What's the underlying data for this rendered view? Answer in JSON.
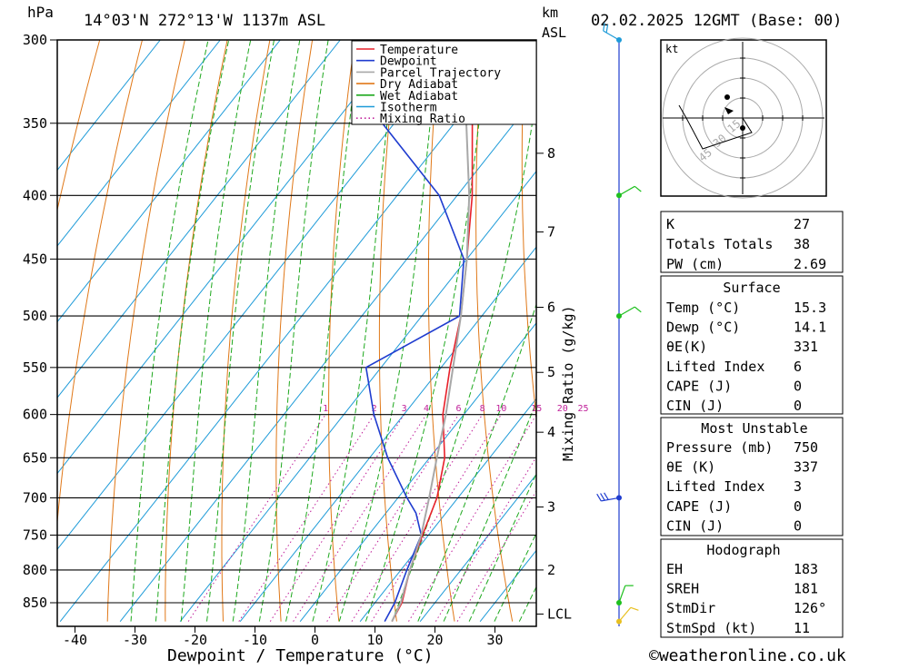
{
  "header": {
    "pressure_unit": "hPa",
    "location": "14°03'N  272°13'W  1137m  ASL",
    "height_unit_km": "km",
    "height_unit_asl": "ASL",
    "datetime": "02.02.2025  12GMT  (Base: 00)"
  },
  "colors": {
    "temperature": "#e8202a",
    "dewpoint": "#1f3ccf",
    "parcel": "#a8a8a8",
    "dry_adiabat": "#e07818",
    "wet_adiabat": "#1ea81e",
    "isotherm": "#1e9bd8",
    "mixing_ratio": "#c0209a",
    "wind_lower": "#1ec01e",
    "wind_top": "#1e9bd8",
    "wind_mid": "#1f3ccf",
    "surface_dot": "#e8c020"
  },
  "legend": [
    "Temperature",
    "Dewpoint",
    "Parcel Trajectory",
    "Dry Adiabat",
    "Wet Adiabat",
    "Isotherm",
    "Mixing Ratio"
  ],
  "footer": {
    "xlabel": "Dewpoint / Temperature (°C)",
    "copyright": "©weatheronline.co.uk"
  },
  "chart_data": {
    "type": "line",
    "title": "14°03'N  272°13'W  1137m  ASL",
    "xlabel": "Dewpoint / Temperature (°C)",
    "ylabel": "hPa",
    "y_scale": "log-pressure",
    "ylim": [
      880,
      300
    ],
    "skew": "skew-T",
    "x_ticks": [
      -40,
      -30,
      -20,
      -10,
      0,
      10,
      20,
      30
    ],
    "pressure_levels": [
      300,
      350,
      400,
      450,
      500,
      550,
      600,
      650,
      700,
      750,
      800,
      850
    ],
    "height_axis": {
      "label": "Mixing Ratio (g/kg)",
      "ticks": [
        {
          "km": "8",
          "p": 370
        },
        {
          "km": "7",
          "p": 428
        },
        {
          "km": "6",
          "p": 492
        },
        {
          "km": "5",
          "p": 555
        },
        {
          "km": "4",
          "p": 620
        },
        {
          "km": "3",
          "p": 712
        },
        {
          "km": "2",
          "p": 800
        },
        {
          "km": "LCL",
          "p": 868
        }
      ]
    },
    "mixing_ratio_labels": [
      "1",
      "2",
      "3",
      "4",
      "6",
      "8",
      "10",
      "15",
      "20",
      "25"
    ],
    "mixing_ratio_values": [
      1,
      2,
      3,
      4,
      6,
      8,
      10,
      15,
      20,
      25
    ],
    "series": [
      {
        "name": "Temperature",
        "points": [
          [
            880,
            15.3
          ],
          [
            850,
            14.5
          ],
          [
            800,
            11.5
          ],
          [
            750,
            9.0
          ],
          [
            700,
            6.5
          ],
          [
            650,
            2.5
          ],
          [
            600,
            -3.5
          ],
          [
            550,
            -8.5
          ],
          [
            500,
            -13.5
          ],
          [
            450,
            -20.0
          ],
          [
            400,
            -27.5
          ],
          [
            350,
            -37.0
          ],
          [
            300,
            -46.0
          ]
        ]
      },
      {
        "name": "Dewpoint",
        "points": [
          [
            880,
            14.1
          ],
          [
            850,
            13.3
          ],
          [
            800,
            11.0
          ],
          [
            750,
            8.8
          ],
          [
            720,
            5.0
          ],
          [
            700,
            1.5
          ],
          [
            650,
            -7.0
          ],
          [
            600,
            -15.0
          ],
          [
            550,
            -22.5
          ],
          [
            500,
            -13.7
          ],
          [
            450,
            -20.5
          ],
          [
            400,
            -33.0
          ],
          [
            350,
            -52.0
          ],
          [
            300,
            -60.0
          ]
        ]
      },
      {
        "name": "Parcel Trajectory",
        "points": [
          [
            880,
            15.3
          ],
          [
            850,
            14.3
          ],
          [
            800,
            11.5
          ],
          [
            750,
            8.8
          ],
          [
            700,
            5.2
          ],
          [
            650,
            1.2
          ],
          [
            600,
            -3.0
          ],
          [
            550,
            -8.0
          ],
          [
            500,
            -13.5
          ],
          [
            450,
            -20.0
          ],
          [
            400,
            -28.0
          ],
          [
            350,
            -38.0
          ],
          [
            300,
            -49.0
          ]
        ]
      }
    ]
  },
  "hodograph": {
    "unit": "kt",
    "rings": [
      "15",
      "30",
      "45"
    ],
    "segments": [
      [
        0.1,
        0.16
      ],
      [
        -0.54,
        0.18
      ],
      [
        -0.18,
        -0.34
      ],
      [
        -0.08,
        -0.14
      ]
    ]
  },
  "wind_barbs": [
    {
      "p": 300,
      "color": "wind_top",
      "dir_deg": 300,
      "speed_kt": 25,
      "flags": 2
    },
    {
      "p": 400,
      "color": "wind_lower",
      "dir_deg": 60,
      "speed_kt": 10,
      "flags": 1
    },
    {
      "p": 500,
      "color": "wind_lower",
      "dir_deg": 60,
      "speed_kt": 10,
      "flags": 1
    },
    {
      "p": 700,
      "color": "wind_mid",
      "dir_deg": 260,
      "speed_kt": 30,
      "flags": 3
    },
    {
      "p": 850,
      "color": "wind_lower",
      "dir_deg": 20,
      "speed_kt": 10,
      "flags": 1
    },
    {
      "p": 880,
      "color": "surface_dot",
      "dir_deg": 40,
      "speed_kt": 5,
      "flags": 1
    }
  ],
  "indices": {
    "k_label": "K",
    "k_value": "27",
    "tt_label": "Totals Totals",
    "tt_value": "38",
    "pw_label": "PW (cm)",
    "pw_value": "2.69"
  },
  "surface": {
    "title": "Surface",
    "rows": [
      {
        "label": "Temp (°C)",
        "value": "15.3"
      },
      {
        "label": "Dewp (°C)",
        "value": "14.1"
      },
      {
        "label": "θE(K)",
        "value": "331"
      },
      {
        "label": "Lifted Index",
        "value": "6"
      },
      {
        "label": "CAPE (J)",
        "value": "0"
      },
      {
        "label": "CIN (J)",
        "value": "0"
      }
    ]
  },
  "most_unstable": {
    "title": "Most Unstable",
    "rows": [
      {
        "label": "Pressure (mb)",
        "value": "750"
      },
      {
        "label": "θE (K)",
        "value": "337"
      },
      {
        "label": "Lifted Index",
        "value": "3"
      },
      {
        "label": "CAPE (J)",
        "value": "0"
      },
      {
        "label": "CIN (J)",
        "value": "0"
      }
    ]
  },
  "hodograph_table": {
    "title": "Hodograph",
    "rows": [
      {
        "label": "EH",
        "value": "183"
      },
      {
        "label": "SREH",
        "value": "181"
      },
      {
        "label": "StmDir",
        "value": "126°"
      },
      {
        "label": "StmSpd (kt)",
        "value": "11"
      }
    ]
  }
}
